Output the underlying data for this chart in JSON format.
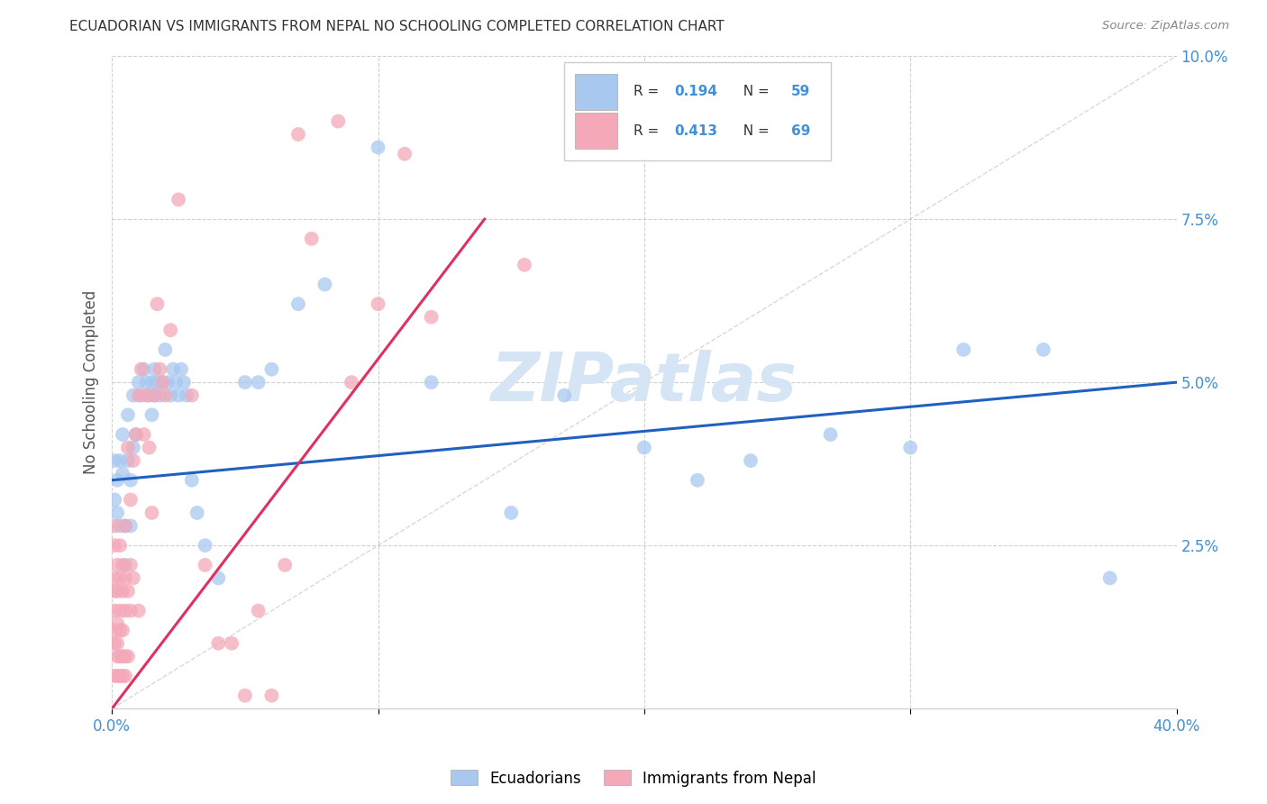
{
  "title": "ECUADORIAN VS IMMIGRANTS FROM NEPAL NO SCHOOLING COMPLETED CORRELATION CHART",
  "source": "Source: ZipAtlas.com",
  "ylabel": "No Schooling Completed",
  "xlim": [
    0.0,
    0.4
  ],
  "ylim": [
    0.0,
    0.1
  ],
  "R_blue": 0.194,
  "N_blue": 59,
  "R_pink": 0.413,
  "N_pink": 69,
  "legend_label_blue": "Ecuadorians",
  "legend_label_pink": "Immigrants from Nepal",
  "watermark": "ZIPatlas",
  "blue_scatter_x": [
    0.001,
    0.001,
    0.002,
    0.002,
    0.003,
    0.003,
    0.004,
    0.004,
    0.005,
    0.005,
    0.006,
    0.006,
    0.007,
    0.007,
    0.008,
    0.008,
    0.009,
    0.01,
    0.011,
    0.012,
    0.013,
    0.014,
    0.015,
    0.015,
    0.016,
    0.016,
    0.017,
    0.018,
    0.019,
    0.02,
    0.021,
    0.022,
    0.023,
    0.024,
    0.025,
    0.026,
    0.027,
    0.028,
    0.03,
    0.032,
    0.035,
    0.04,
    0.05,
    0.055,
    0.06,
    0.07,
    0.08,
    0.1,
    0.12,
    0.15,
    0.17,
    0.2,
    0.22,
    0.24,
    0.27,
    0.3,
    0.32,
    0.35,
    0.375
  ],
  "blue_scatter_y": [
    0.038,
    0.032,
    0.035,
    0.03,
    0.038,
    0.028,
    0.042,
    0.036,
    0.028,
    0.022,
    0.045,
    0.038,
    0.035,
    0.028,
    0.048,
    0.04,
    0.042,
    0.05,
    0.048,
    0.052,
    0.05,
    0.048,
    0.05,
    0.045,
    0.052,
    0.048,
    0.05,
    0.048,
    0.05,
    0.055,
    0.05,
    0.048,
    0.052,
    0.05,
    0.048,
    0.052,
    0.05,
    0.048,
    0.035,
    0.03,
    0.025,
    0.02,
    0.05,
    0.05,
    0.052,
    0.062,
    0.065,
    0.086,
    0.05,
    0.03,
    0.048,
    0.04,
    0.035,
    0.038,
    0.042,
    0.04,
    0.055,
    0.055,
    0.02
  ],
  "pink_scatter_x": [
    0.001,
    0.001,
    0.001,
    0.001,
    0.001,
    0.001,
    0.001,
    0.001,
    0.002,
    0.002,
    0.002,
    0.002,
    0.002,
    0.002,
    0.003,
    0.003,
    0.003,
    0.003,
    0.003,
    0.003,
    0.004,
    0.004,
    0.004,
    0.004,
    0.004,
    0.005,
    0.005,
    0.005,
    0.005,
    0.005,
    0.006,
    0.006,
    0.006,
    0.007,
    0.007,
    0.007,
    0.008,
    0.008,
    0.009,
    0.01,
    0.01,
    0.011,
    0.012,
    0.013,
    0.014,
    0.015,
    0.016,
    0.017,
    0.018,
    0.019,
    0.02,
    0.022,
    0.025,
    0.03,
    0.035,
    0.04,
    0.045,
    0.05,
    0.055,
    0.06,
    0.065,
    0.07,
    0.075,
    0.085,
    0.09,
    0.1,
    0.11,
    0.12,
    0.155
  ],
  "pink_scatter_y": [
    0.005,
    0.01,
    0.012,
    0.015,
    0.018,
    0.02,
    0.025,
    0.028,
    0.005,
    0.008,
    0.01,
    0.013,
    0.018,
    0.022,
    0.005,
    0.008,
    0.012,
    0.015,
    0.02,
    0.025,
    0.005,
    0.008,
    0.012,
    0.018,
    0.022,
    0.005,
    0.008,
    0.015,
    0.02,
    0.028,
    0.008,
    0.018,
    0.04,
    0.015,
    0.022,
    0.032,
    0.02,
    0.038,
    0.042,
    0.015,
    0.048,
    0.052,
    0.042,
    0.048,
    0.04,
    0.03,
    0.048,
    0.062,
    0.052,
    0.05,
    0.048,
    0.058,
    0.078,
    0.048,
    0.022,
    0.01,
    0.01,
    0.002,
    0.015,
    0.002,
    0.022,
    0.088,
    0.072,
    0.09,
    0.05,
    0.062,
    0.085,
    0.06,
    0.068
  ],
  "blue_color": "#a8c8f0",
  "pink_color": "#f4a8b8",
  "blue_line_color": "#2060c0",
  "pink_line_color": "#e03060",
  "diag_line_color": "#c0c0c0",
  "grid_color": "#d0d0d0",
  "title_color": "#333333",
  "axis_tick_color": "#4090d8",
  "watermark_color": "#d5e5f5",
  "bg_color": "#ffffff"
}
